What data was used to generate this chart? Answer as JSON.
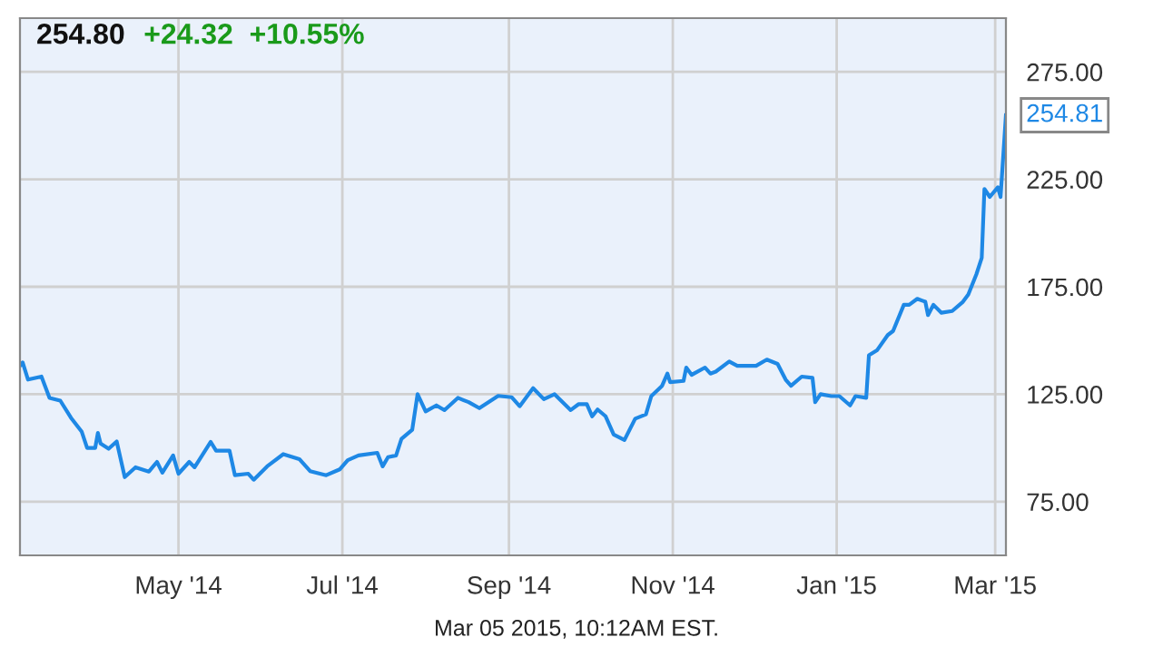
{
  "chart_data": {
    "type": "line",
    "title": "254.80",
    "subtitle": "+24.32  +10.55%",
    "x": [
      "2014-03-03",
      "2014-03-04",
      "2014-03-06",
      "2014-03-11",
      "2014-03-14",
      "2014-03-18",
      "2014-03-22",
      "2014-03-26",
      "2014-03-28",
      "2014-03-31",
      "2014-04-01",
      "2014-04-02",
      "2014-04-05",
      "2014-04-08",
      "2014-04-11",
      "2014-04-15",
      "2014-04-20",
      "2014-04-23",
      "2014-04-25",
      "2014-04-29",
      "2014-05-01",
      "2014-05-05",
      "2014-05-07",
      "2014-05-13",
      "2014-05-15",
      "2014-05-20",
      "2014-05-22",
      "2014-05-27",
      "2014-05-29",
      "2014-06-03",
      "2014-06-09",
      "2014-06-15",
      "2014-06-19",
      "2014-06-25",
      "2014-06-30",
      "2014-07-03",
      "2014-07-07",
      "2014-07-14",
      "2014-07-16",
      "2014-07-18",
      "2014-07-21",
      "2014-07-23",
      "2014-07-27",
      "2014-07-29",
      "2014-08-01",
      "2014-08-05",
      "2014-08-08",
      "2014-08-13",
      "2014-08-17",
      "2014-08-21",
      "2014-08-28",
      "2014-09-02",
      "2014-09-05",
      "2014-09-10",
      "2014-09-14",
      "2014-09-18",
      "2014-09-24",
      "2014-09-27",
      "2014-09-30",
      "2014-10-02",
      "2014-10-04",
      "2014-10-07",
      "2014-10-10",
      "2014-10-14",
      "2014-10-18",
      "2014-10-22",
      "2014-10-24",
      "2014-10-28",
      "2014-10-30",
      "2014-10-31",
      "2014-11-05",
      "2014-11-06",
      "2014-11-08",
      "2014-11-13",
      "2014-11-15",
      "2014-11-17",
      "2014-11-22",
      "2014-11-25",
      "2014-12-02",
      "2014-12-06",
      "2014-12-10",
      "2014-12-13",
      "2014-12-15",
      "2014-12-19",
      "2014-12-23",
      "2014-12-24",
      "2014-12-26",
      "2014-12-30",
      "2015-01-02",
      "2015-01-06",
      "2015-01-08",
      "2015-01-12",
      "2015-01-13",
      "2015-01-16",
      "2015-01-20",
      "2015-01-22",
      "2015-01-26",
      "2015-01-28",
      "2015-01-31",
      "2015-02-03",
      "2015-02-04",
      "2015-02-06",
      "2015-02-09",
      "2015-02-13",
      "2015-02-17",
      "2015-02-19",
      "2015-02-22",
      "2015-02-24",
      "2015-02-25",
      "2015-02-27",
      "2015-03-02",
      "2015-03-03",
      "2015-03-05"
    ],
    "series": [
      {
        "color": "#1e88e5",
        "values": [
          138.2,
          139.8,
          131.8,
          133.2,
          123.3,
          122,
          114,
          107.5,
          100,
          100,
          107,
          102,
          99.6,
          103,
          86.4,
          91,
          89,
          93.5,
          88.5,
          96.5,
          88,
          93.5,
          91,
          102.8,
          98.7,
          98.7,
          87.3,
          88,
          85.2,
          91.4,
          97.1,
          94.8,
          89.2,
          87.3,
          90,
          94.3,
          96.5,
          97.7,
          91.4,
          95.7,
          96.5,
          104.2,
          108.4,
          125,
          117,
          119.8,
          117.6,
          123.3,
          121.3,
          118.5,
          124.2,
          123.6,
          119.4,
          127.8,
          122.7,
          125,
          117.6,
          120.4,
          120.4,
          114.7,
          117.9,
          114.7,
          106.2,
          103.7,
          113.6,
          115.6,
          124.1,
          128.9,
          134.6,
          130.6,
          131.2,
          137.4,
          134,
          137.4,
          134.6,
          135.5,
          140.2,
          138.2,
          138.2,
          141.1,
          139.1,
          131.8,
          128.9,
          133.2,
          132.6,
          121.3,
          125,
          124.1,
          124.1,
          119.8,
          124.1,
          123.3,
          143.1,
          145.4,
          152.5,
          154.4,
          166.6,
          166.6,
          169.4,
          168,
          161.8,
          166.6,
          162.9,
          163.7,
          168,
          171.4,
          180.8,
          188.5,
          220.5,
          216.8,
          221.3,
          216.8,
          254.81
        ]
      }
    ],
    "xlim": [
      "2014-03-03",
      "2015-03-05"
    ],
    "ylim": [
      50,
      300
    ],
    "xticks": [
      {
        "value": "2014-05-01",
        "label": "May '14"
      },
      {
        "value": "2014-07-01",
        "label": "Jul '14"
      },
      {
        "value": "2014-09-01",
        "label": "Sep '14"
      },
      {
        "value": "2014-11-01",
        "label": "Nov '14"
      },
      {
        "value": "2015-01-01",
        "label": "Jan '15"
      },
      {
        "value": "2015-03-01",
        "label": "Mar '15"
      }
    ],
    "yticks": [
      {
        "value": 75,
        "label": "75.00"
      },
      {
        "value": 125,
        "label": "125.00"
      },
      {
        "value": 175,
        "label": "175.00"
      },
      {
        "value": 225,
        "label": "225.00"
      },
      {
        "value": 275,
        "label": "275.00"
      }
    ],
    "grid": true,
    "legend": false,
    "annotations": [
      {
        "text": "254.81",
        "x": "2015-03-05",
        "y": 254.81
      },
      "Mar 05 2015, 10:12AM EST."
    ]
  }
}
